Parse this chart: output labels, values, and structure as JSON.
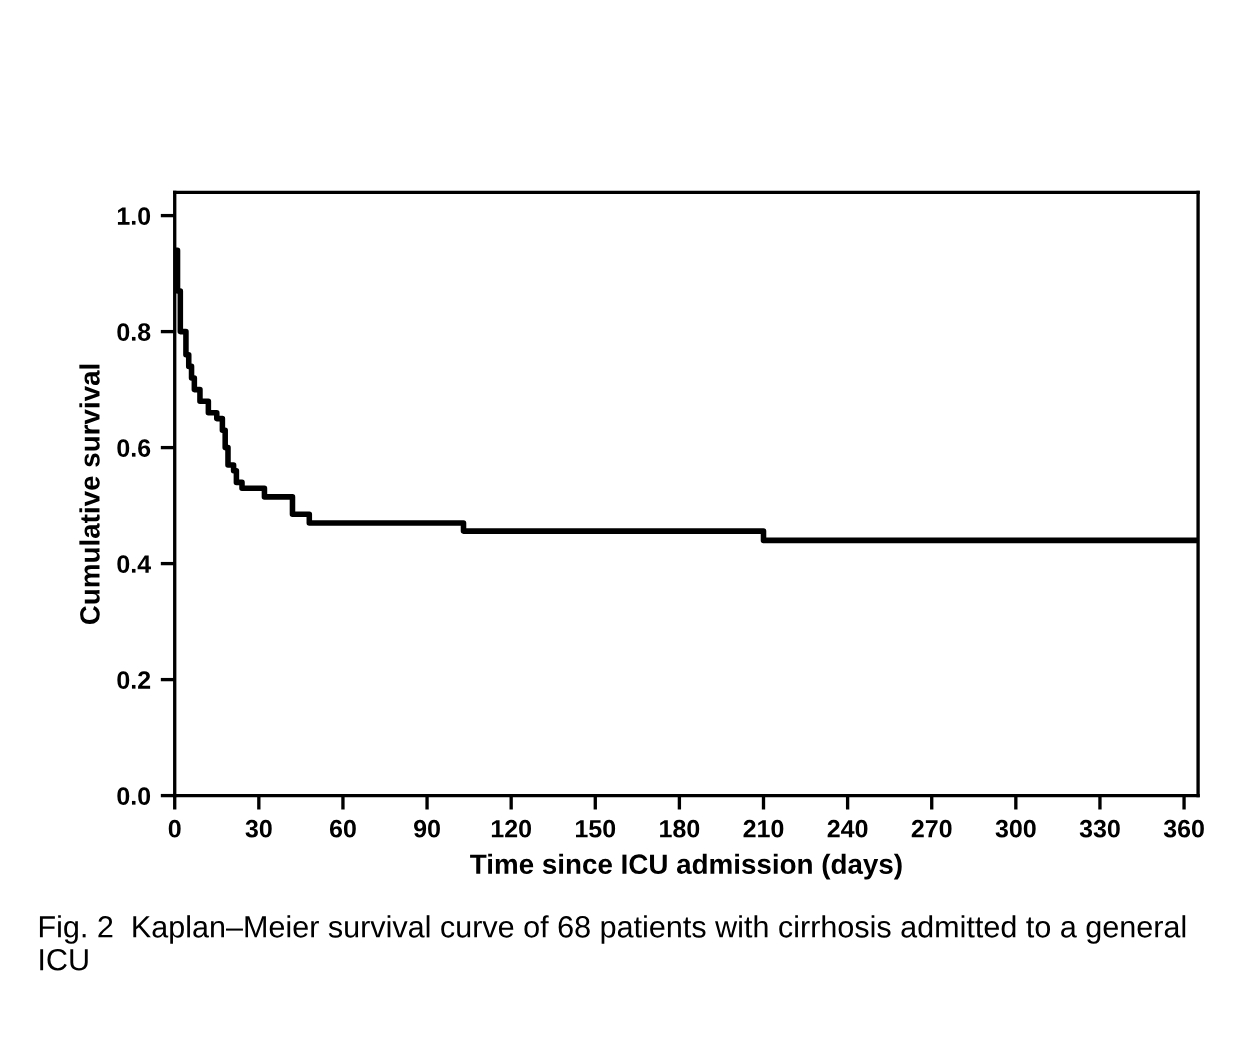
{
  "chart_data": {
    "type": "step",
    "xlabel": "Time since ICU admission (days)",
    "ylabel": "Cumulative survival",
    "x": [
      0,
      1,
      2,
      4,
      5,
      6,
      7,
      9,
      12,
      15,
      17,
      18,
      19,
      21,
      22,
      24,
      32,
      42,
      48,
      103,
      210,
      365
    ],
    "series": [
      {
        "color": "#000000",
        "values": [
          0.94,
          0.87,
          0.8,
          0.76,
          0.74,
          0.72,
          0.7,
          0.68,
          0.66,
          0.65,
          0.63,
          0.6,
          0.57,
          0.56,
          0.54,
          0.53,
          0.515,
          0.485,
          0.47,
          0.456,
          0.44,
          0.44
        ]
      }
    ],
    "xlim": [
      0,
      365
    ],
    "xticks": [
      0,
      30,
      60,
      90,
      120,
      150,
      180,
      210,
      240,
      270,
      300,
      330,
      360
    ],
    "ylim": [
      0,
      1.04
    ],
    "yticks": [
      {
        "value": 0,
        "label": "0.0"
      },
      {
        "value": 0.2,
        "label": "0.2"
      },
      {
        "value": 0.4,
        "label": "0.4"
      },
      {
        "value": 0.6,
        "label": "0.6"
      },
      {
        "value": 0.8,
        "label": "0.8"
      },
      {
        "value": 1.0,
        "label": "1.0"
      }
    ],
    "grid": false,
    "legend": false,
    "marker": "none",
    "line_style": "solid",
    "annotations": [
      "Fig. 2  Kaplan–Meier survival curve of 68 patients with cirrhosis admitted to a general ICU"
    ]
  }
}
